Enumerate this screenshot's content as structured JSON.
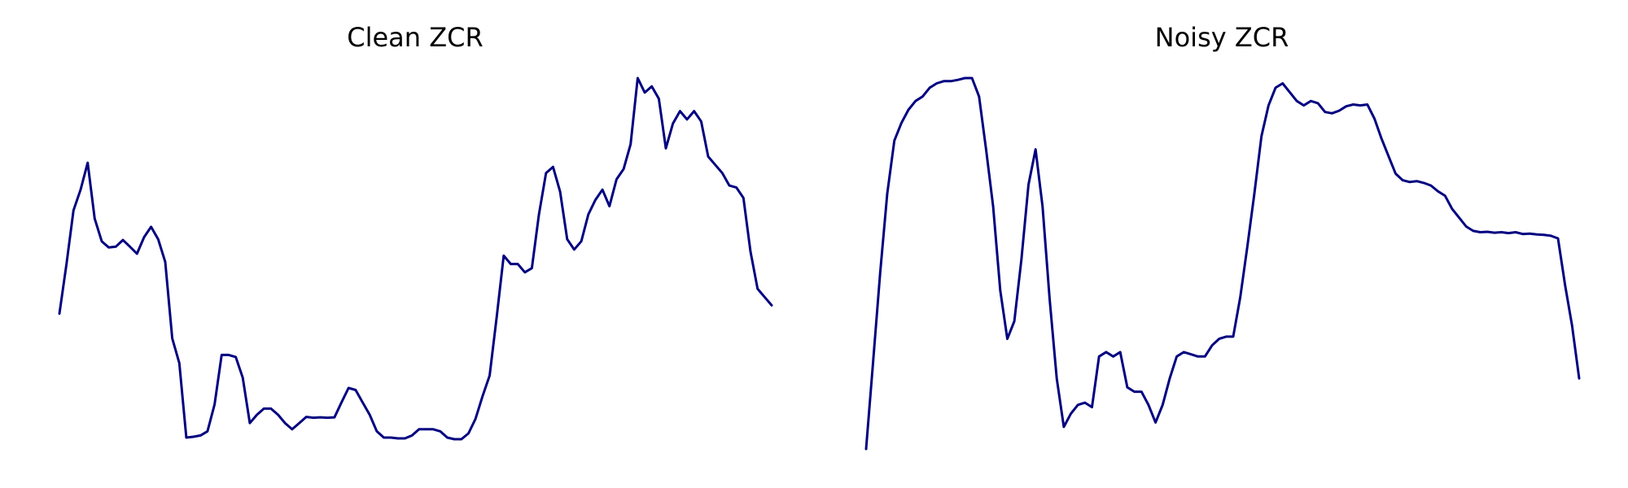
{
  "chart_data": [
    {
      "type": "line",
      "title": "Clean ZCR",
      "xlabel": "",
      "ylabel": "",
      "grid": false,
      "axes_visible": false,
      "color": "#000080",
      "x": [
        0,
        1,
        2,
        3,
        4,
        5,
        6,
        7,
        8,
        9,
        10,
        11,
        12,
        13,
        14,
        15,
        16,
        17,
        18,
        19,
        20,
        21,
        22,
        23,
        24,
        25,
        26,
        27,
        28,
        29,
        30,
        31,
        32,
        33,
        34,
        35,
        36,
        37,
        38,
        39,
        40,
        41,
        42,
        43,
        44,
        45,
        46,
        47,
        48,
        49,
        50,
        51,
        52,
        53,
        54,
        55,
        56,
        57,
        58,
        59,
        60,
        61,
        62,
        63,
        64,
        65,
        66,
        67,
        68,
        69,
        70,
        71,
        72,
        73,
        74,
        75,
        76,
        77,
        78,
        79,
        80,
        81,
        82,
        83,
        84,
        85,
        86,
        87,
        88,
        89,
        90,
        91,
        92,
        93,
        94,
        95,
        96,
        97,
        98,
        99,
        100,
        101
      ],
      "values": [
        0.3,
        0.42,
        0.55,
        0.6,
        0.665,
        0.53,
        0.475,
        0.46,
        0.462,
        0.478,
        0.462,
        0.445,
        0.485,
        0.51,
        0.48,
        0.425,
        0.24,
        0.18,
        0.0,
        0.002,
        0.005,
        0.015,
        0.08,
        0.2,
        0.2,
        0.195,
        0.145,
        0.035,
        0.055,
        0.07,
        0.07,
        0.055,
        0.035,
        0.02,
        0.035,
        0.05,
        0.048,
        0.049,
        0.048,
        0.049,
        0.085,
        0.12,
        0.115,
        0.085,
        0.055,
        0.015,
        0.0,
        0.0,
        -0.002,
        -0.002,
        0.005,
        0.02,
        0.02,
        0.02,
        0.015,
        0.0,
        -0.004,
        -0.004,
        0.01,
        0.045,
        0.1,
        0.15,
        0.29,
        0.44,
        0.42,
        0.42,
        0.4,
        0.41,
        0.54,
        0.64,
        0.655,
        0.595,
        0.48,
        0.455,
        0.475,
        0.54,
        0.575,
        0.6,
        0.56,
        0.625,
        0.65,
        0.71,
        0.87,
        0.835,
        0.85,
        0.82,
        0.7,
        0.76,
        0.79,
        0.77,
        0.79,
        0.765,
        0.68,
        0.66,
        0.64,
        0.61,
        0.605,
        0.58,
        0.45,
        0.36,
        0.34,
        0.32
      ]
    },
    {
      "type": "line",
      "title": "Noisy ZCR",
      "xlabel": "",
      "ylabel": "",
      "grid": false,
      "axes_visible": false,
      "color": "#000080",
      "x": [
        0,
        1,
        2,
        3,
        4,
        5,
        6,
        7,
        8,
        9,
        10,
        11,
        12,
        13,
        14,
        15,
        16,
        17,
        18,
        19,
        20,
        21,
        22,
        23,
        24,
        25,
        26,
        27,
        28,
        29,
        30,
        31,
        32,
        33,
        34,
        35,
        36,
        37,
        38,
        39,
        40,
        41,
        42,
        43,
        44,
        45,
        46,
        47,
        48,
        49,
        50,
        51,
        52,
        53,
        54,
        55,
        56,
        57,
        58,
        59,
        60,
        61,
        62,
        63,
        64,
        65,
        66,
        67,
        68,
        69,
        70,
        71,
        72,
        73,
        74,
        75,
        76,
        77,
        78,
        79,
        80,
        81,
        82,
        83,
        84,
        85,
        86,
        87,
        88,
        89,
        90,
        91,
        92,
        93,
        94,
        95,
        96,
        97,
        98,
        99,
        100,
        101
      ],
      "values": [
        0.0,
        0.2,
        0.4,
        0.58,
        0.7,
        0.74,
        0.77,
        0.79,
        0.8,
        0.82,
        0.83,
        0.835,
        0.835,
        0.838,
        0.842,
        0.842,
        0.8,
        0.68,
        0.55,
        0.36,
        0.25,
        0.29,
        0.43,
        0.6,
        0.68,
        0.55,
        0.34,
        0.16,
        0.05,
        0.08,
        0.1,
        0.105,
        0.095,
        0.21,
        0.22,
        0.21,
        0.22,
        0.14,
        0.13,
        0.13,
        0.1,
        0.06,
        0.1,
        0.16,
        0.21,
        0.22,
        0.215,
        0.21,
        0.21,
        0.235,
        0.25,
        0.255,
        0.255,
        0.345,
        0.46,
        0.58,
        0.71,
        0.78,
        0.82,
        0.83,
        0.81,
        0.79,
        0.78,
        0.79,
        0.785,
        0.765,
        0.762,
        0.768,
        0.778,
        0.782,
        0.78,
        0.782,
        0.75,
        0.705,
        0.665,
        0.625,
        0.61,
        0.606,
        0.608,
        0.604,
        0.598,
        0.585,
        0.575,
        0.545,
        0.525,
        0.505,
        0.495,
        0.492,
        0.493,
        0.491,
        0.492,
        0.49,
        0.492,
        0.488,
        0.489,
        0.487,
        0.486,
        0.484,
        0.478,
        0.372,
        0.28,
        0.16
      ]
    }
  ]
}
